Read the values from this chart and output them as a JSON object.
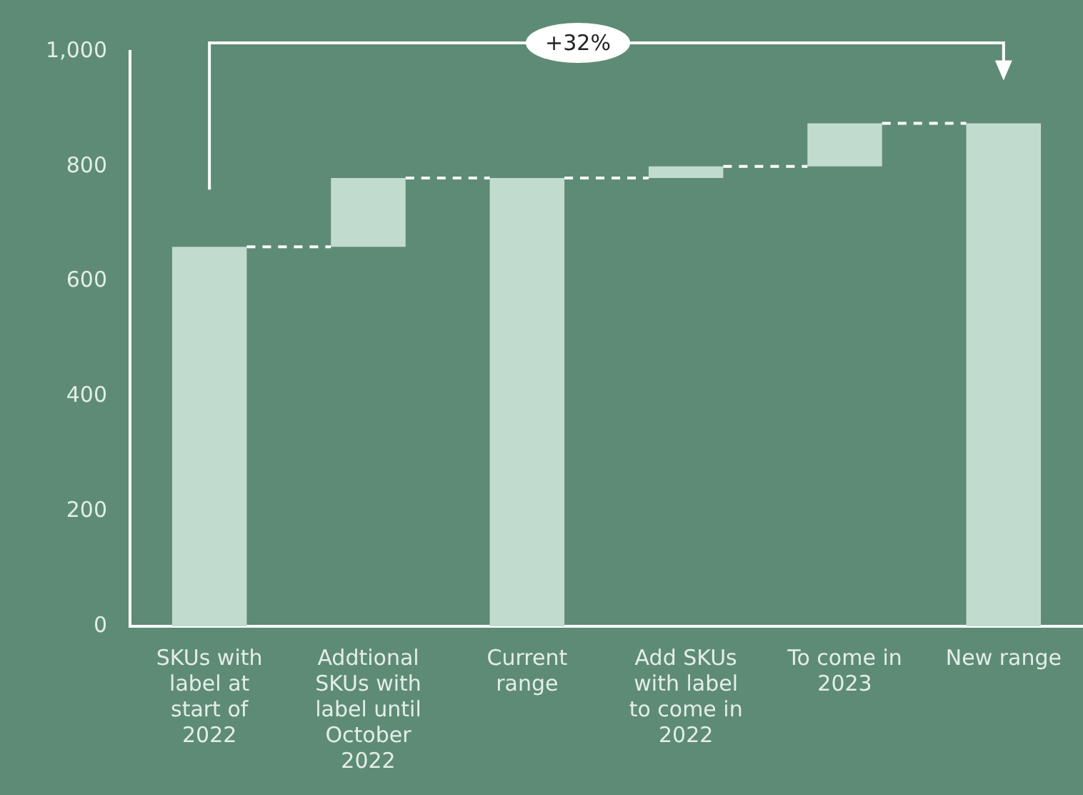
{
  "chart_data": {
    "type": "bar",
    "categories": [
      "SKUs with label at start of 2022",
      "Addtional SKUs with label until October 2022",
      "Current range",
      "Add SKUs with label to come in 2022",
      "To come in 2023",
      "New range"
    ],
    "values": [
      660,
      120,
      780,
      20,
      75,
      875
    ],
    "base": [
      0,
      660,
      0,
      780,
      800,
      0
    ],
    "color": "#c1dbce",
    "ylim": [
      0,
      1000
    ],
    "yticks": [
      0,
      200,
      400,
      600,
      800,
      {
        "value": 1000,
        "label": "1,000"
      }
    ],
    "grid": false,
    "legend": false,
    "annotations": [
      "+32%"
    ]
  }
}
